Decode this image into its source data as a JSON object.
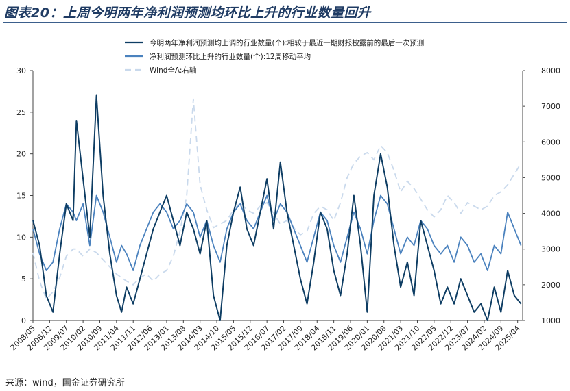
{
  "title": "图表20：上周今明两年净利润预测均环比上升的行业数量回升",
  "source": "来源：wind，国金证券研究所",
  "chart_data": {
    "type": "line",
    "title": "图表20：上周今明两年净利润预测均环比上升的行业数量回升",
    "x_tick_labels": [
      "2008/05",
      "2008/12",
      "2009/07",
      "2010/02",
      "2010/09",
      "2011/04",
      "2011/11",
      "2012/06",
      "2013/01",
      "2013/08",
      "2014/03",
      "2014/10",
      "2015/05",
      "2015/12",
      "2016/07",
      "2017/02",
      "2017/09",
      "2018/04",
      "2018/11",
      "2019/06",
      "2020/01",
      "2020/08",
      "2021/03",
      "2021/10",
      "2022/05",
      "2022/12",
      "2023/07",
      "2024/02",
      "2024/09",
      "2025/04"
    ],
    "y_left_ticks": [
      0,
      5,
      10,
      15,
      20,
      25,
      30
    ],
    "y_right_ticks": [
      1000,
      2000,
      3000,
      4000,
      5000,
      6000,
      7000,
      8000
    ],
    "ylim_left": [
      0,
      30
    ],
    "ylim_right": [
      1000,
      8000
    ],
    "legend_position": "top-right",
    "series": [
      {
        "name": "今明两年净利润预测均上调的行业数量(个):相较于最近一期财报披露前的最后一次预测",
        "axis": "left",
        "color": "#0e3d63",
        "style": "solid",
        "t": [
          0,
          0.4,
          0.8,
          1.2,
          1.6,
          2.0,
          2.4,
          2.6,
          3.0,
          3.4,
          3.8,
          4.2,
          4.6,
          5.0,
          5.3,
          5.6,
          6.0,
          6.4,
          6.8,
          7.2,
          7.6,
          8.0,
          8.4,
          8.8,
          9.2,
          9.6,
          10.0,
          10.4,
          10.8,
          11.2,
          11.6,
          12.0,
          12.4,
          12.8,
          13.2,
          13.6,
          14.0,
          14.4,
          14.8,
          15.2,
          15.6,
          16.0,
          16.4,
          16.8,
          17.2,
          17.6,
          18.0,
          18.4,
          18.8,
          19.2,
          19.6,
          20.0,
          20.4,
          20.8,
          21.2,
          21.6,
          22.0,
          22.4,
          22.8,
          23.2,
          23.6,
          24.0,
          24.4,
          24.8,
          25.2,
          25.6,
          26.0,
          26.4,
          26.8,
          27.2,
          27.6,
          28.0,
          28.4,
          28.8,
          29.2
        ],
        "values": [
          12,
          9,
          3,
          1,
          8,
          14,
          12,
          24,
          17,
          10,
          27,
          15,
          8,
          3,
          1,
          4,
          2,
          5,
          8,
          11,
          13,
          15,
          12,
          9,
          13,
          11,
          8,
          12,
          3,
          0,
          9,
          13,
          16,
          11,
          9,
          13,
          17,
          11,
          19,
          13,
          9,
          5,
          2,
          7,
          13,
          11,
          6,
          3,
          8,
          15,
          9,
          1,
          15,
          20,
          16,
          9,
          4,
          7,
          3,
          12,
          9,
          6,
          2,
          4,
          2,
          5,
          3,
          1,
          2,
          0,
          4,
          1,
          6,
          3,
          2
        ]
      },
      {
        "name": "净利润预测环比上升的行业数量(个):12周移动平均",
        "axis": "left",
        "color": "#4b82be",
        "style": "solid",
        "t": [
          0,
          0.4,
          0.8,
          1.2,
          1.6,
          2.0,
          2.4,
          2.6,
          3.0,
          3.4,
          3.8,
          4.2,
          4.6,
          5.0,
          5.3,
          5.6,
          6.0,
          6.4,
          6.8,
          7.2,
          7.6,
          8.0,
          8.4,
          8.8,
          9.2,
          9.6,
          10.0,
          10.4,
          10.8,
          11.2,
          11.6,
          12.0,
          12.4,
          12.8,
          13.2,
          13.6,
          14.0,
          14.4,
          14.8,
          15.2,
          15.6,
          16.0,
          16.4,
          16.8,
          17.2,
          17.6,
          18.0,
          18.4,
          18.8,
          19.2,
          19.6,
          20.0,
          20.4,
          20.8,
          21.2,
          21.6,
          22.0,
          22.4,
          22.8,
          23.2,
          23.6,
          24.0,
          24.4,
          24.8,
          25.2,
          25.6,
          26.0,
          26.4,
          26.8,
          27.2,
          27.6,
          28.0,
          28.4,
          28.8,
          29.2
        ],
        "values": [
          11,
          8,
          6,
          7,
          11,
          14,
          13,
          12,
          14,
          9,
          15,
          13,
          10,
          7,
          9,
          8,
          6,
          9,
          11,
          13,
          14,
          13,
          11,
          12,
          14,
          13,
          10,
          12,
          9,
          7,
          11,
          13,
          14,
          12,
          11,
          13,
          15,
          12,
          14,
          13,
          11,
          9,
          7,
          10,
          13,
          12,
          9,
          7,
          10,
          13,
          11,
          8,
          12,
          15,
          14,
          11,
          8,
          10,
          9,
          12,
          11,
          9,
          8,
          9,
          7,
          10,
          9,
          7,
          8,
          6,
          9,
          8,
          13,
          11,
          9
        ]
      },
      {
        "name": "Wind全A:右轴",
        "axis": "right",
        "color": "#c9d9ec",
        "style": "dashed",
        "t": [
          0,
          0.4,
          0.8,
          1.2,
          1.6,
          2.0,
          2.4,
          2.6,
          3.0,
          3.4,
          3.8,
          4.2,
          4.6,
          5.0,
          5.3,
          5.6,
          6.0,
          6.4,
          6.8,
          7.2,
          7.6,
          8.0,
          8.4,
          8.8,
          9.2,
          9.6,
          10.0,
          10.4,
          10.8,
          11.2,
          11.6,
          12.0,
          12.4,
          12.8,
          13.2,
          13.6,
          14.0,
          14.4,
          14.8,
          15.2,
          15.6,
          16.0,
          16.4,
          16.8,
          17.2,
          17.6,
          18.0,
          18.4,
          18.8,
          19.2,
          19.6,
          20.0,
          20.4,
          20.8,
          21.2,
          21.6,
          22.0,
          22.4,
          22.8,
          23.2,
          23.6,
          24.0,
          24.4,
          24.8,
          25.2,
          25.6,
          26.0,
          26.4,
          26.8,
          27.2,
          27.6,
          28.0,
          28.4,
          28.8,
          29.2
        ],
        "values": [
          2900,
          2100,
          1600,
          1800,
          2200,
          2800,
          3000,
          3000,
          2800,
          3000,
          2900,
          2700,
          2500,
          2300,
          2200,
          2100,
          2000,
          2200,
          2300,
          2100,
          2300,
          2400,
          2800,
          3500,
          4500,
          7200,
          4800,
          4100,
          3600,
          3700,
          3800,
          4100,
          4300,
          4100,
          4000,
          4200,
          4300,
          4000,
          3700,
          3800,
          3600,
          3400,
          3500,
          4000,
          4200,
          4100,
          3800,
          4300,
          5000,
          5400,
          5600,
          5700,
          5500,
          5900,
          5700,
          5200,
          4600,
          4900,
          4700,
          4400,
          4100,
          3900,
          4100,
          4500,
          4300,
          4000,
          4300,
          4200,
          4100,
          4200,
          4500,
          4600,
          4800,
          5100,
          5400
        ]
      }
    ]
  }
}
